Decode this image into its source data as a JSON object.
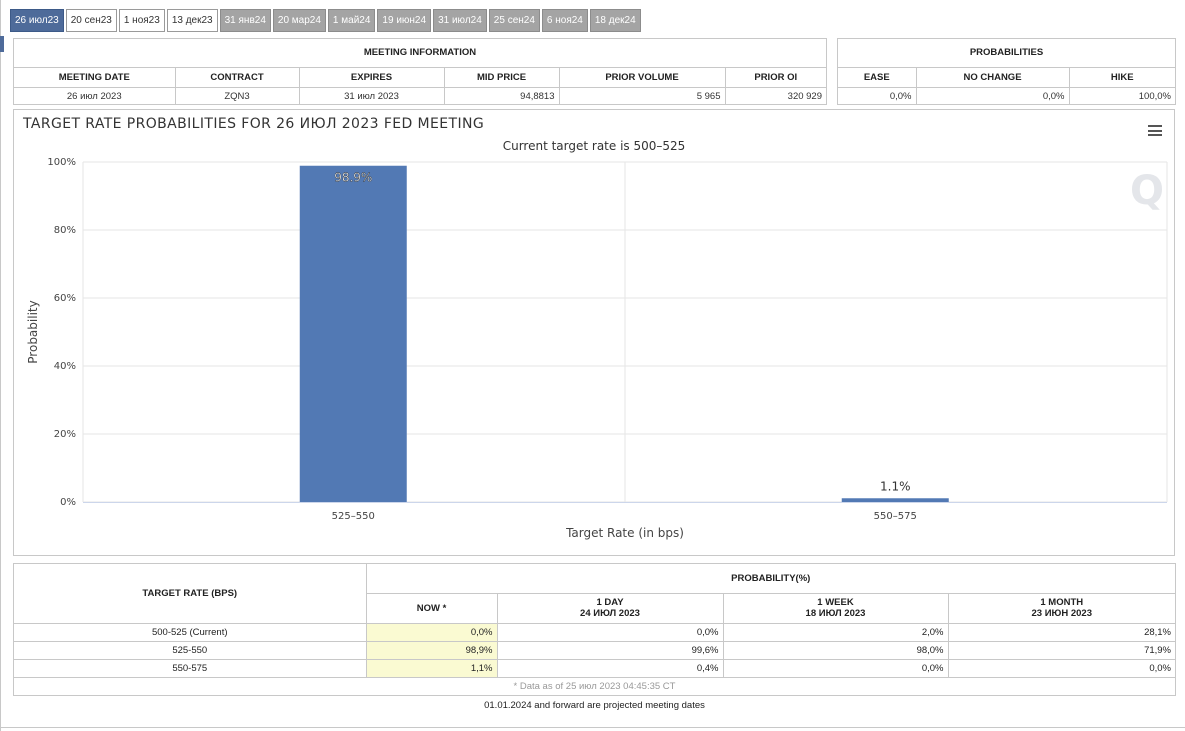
{
  "tabs": [
    {
      "label": "26 июл23",
      "state": "active"
    },
    {
      "label": "20 сен23",
      "state": "normal"
    },
    {
      "label": "1 ноя23",
      "state": "normal"
    },
    {
      "label": "13 дек23",
      "state": "normal"
    },
    {
      "label": "31 янв24",
      "state": "projected"
    },
    {
      "label": "20 мар24",
      "state": "projected"
    },
    {
      "label": "1 май24",
      "state": "projected"
    },
    {
      "label": "19 июн24",
      "state": "projected"
    },
    {
      "label": "31 июл24",
      "state": "projected"
    },
    {
      "label": "25 сен24",
      "state": "projected"
    },
    {
      "label": "6 ноя24",
      "state": "projected"
    },
    {
      "label": "18 дек24",
      "state": "projected"
    }
  ],
  "meeting": {
    "header": "MEETING INFORMATION",
    "columns": [
      "MEETING DATE",
      "CONTRACT",
      "EXPIRES",
      "MID PRICE",
      "PRIOR VOLUME",
      "PRIOR OI"
    ],
    "values": [
      "26 июл 2023",
      "ZQN3",
      "31 июл 2023",
      "94,8813",
      "5 965",
      "320 929"
    ]
  },
  "probabilities": {
    "header": "PROBABILITIES",
    "columns": [
      "EASE",
      "NO CHANGE",
      "HIKE"
    ],
    "values": [
      "0,0%",
      "0,0%",
      "100,0%"
    ]
  },
  "chart_data": {
    "type": "bar",
    "title": "TARGET RATE PROBABILITIES FOR 26 ИЮЛ 2023 FED MEETING",
    "subtitle": "Current target rate is 500–525",
    "xlabel": "Target Rate (in bps)",
    "ylabel": "Probability",
    "categories": [
      "525–550",
      "550–575"
    ],
    "values": [
      98.9,
      1.1
    ],
    "data_labels": [
      "98.9%",
      "1.1%"
    ],
    "ylim": [
      0,
      100
    ],
    "yticks": [
      0,
      20,
      40,
      60,
      80,
      100
    ],
    "ytick_labels": [
      "0%",
      "20%",
      "40%",
      "60%",
      "80%",
      "100%"
    ],
    "grid": true,
    "bar_color": "#5279b4",
    "watermark": "Q"
  },
  "bottom_table": {
    "target_header": "TARGET RATE (BPS)",
    "prob_header": "PROBABILITY(%)",
    "columns": [
      {
        "line1": "NOW *",
        "line2": ""
      },
      {
        "line1": "1 DAY",
        "line2": "24 ИЮЛ 2023"
      },
      {
        "line1": "1 WEEK",
        "line2": "18 ИЮЛ 2023"
      },
      {
        "line1": "1 MONTH",
        "line2": "23 ИЮН 2023"
      }
    ],
    "rows": [
      {
        "rate": "500-525 (Current)",
        "vals": [
          "0,0%",
          "0,0%",
          "2,0%",
          "28,1%"
        ]
      },
      {
        "rate": "525-550",
        "vals": [
          "98,9%",
          "99,6%",
          "98,0%",
          "71,9%"
        ]
      },
      {
        "rate": "550-575",
        "vals": [
          "1,1%",
          "0,4%",
          "0,0%",
          "0,0%"
        ]
      }
    ],
    "data_note": "* Data as of 25 июл 2023 04:45:35 CT"
  },
  "footnote": "01.01.2024 and forward are projected meeting dates"
}
